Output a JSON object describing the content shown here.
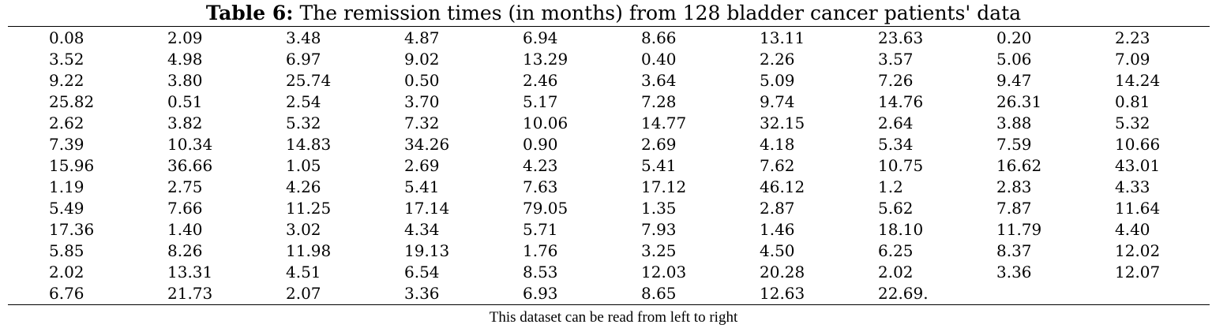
{
  "table": {
    "title_label": "Table 6:",
    "title": "The remission times (in months) from 128 bladder cancer patients' data",
    "rows": [
      [
        "0.08",
        "2.09",
        "3.48",
        "4.87",
        "6.94",
        "8.66",
        "13.11",
        "23.63",
        "0.20",
        "2.23"
      ],
      [
        "3.52",
        "4.98",
        "6.97",
        "9.02",
        "13.29",
        "0.40",
        "2.26",
        "3.57",
        "5.06",
        "7.09"
      ],
      [
        "9.22",
        "3.80",
        "25.74",
        "0.50",
        "2.46",
        "3.64",
        "5.09",
        "7.26",
        "9.47",
        "14.24"
      ],
      [
        "25.82",
        "0.51",
        "2.54",
        "3.70",
        "5.17",
        "7.28",
        "9.74",
        "14.76",
        "26.31",
        "0.81"
      ],
      [
        "2.62",
        "3.82",
        "5.32",
        "7.32",
        "10.06",
        "14.77",
        "32.15",
        "2.64",
        "3.88",
        "5.32"
      ],
      [
        "7.39",
        "10.34",
        "14.83",
        "34.26",
        "0.90",
        "2.69",
        "4.18",
        "5.34",
        "7.59",
        "10.66"
      ],
      [
        "15.96",
        "36.66",
        "1.05",
        "2.69",
        "4.23",
        "5.41",
        "7.62",
        "10.75",
        "16.62",
        "43.01"
      ],
      [
        "1.19",
        "2.75",
        "4.26",
        "5.41",
        "7.63",
        "17.12",
        "46.12",
        "1.2",
        "2.83",
        "4.33"
      ],
      [
        "5.49",
        "7.66",
        "11.25",
        "17.14",
        "79.05",
        "1.35",
        "2.87",
        "5.62",
        "7.87",
        "11.64"
      ],
      [
        "17.36",
        "1.40",
        "3.02",
        "4.34",
        "5.71",
        "7.93",
        "1.46",
        "18.10",
        "11.79",
        "4.40"
      ],
      [
        "5.85",
        "8.26",
        "11.98",
        "19.13",
        "1.76",
        "3.25",
        "4.50",
        "6.25",
        "8.37",
        "12.02"
      ],
      [
        "2.02",
        "13.31",
        "4.51",
        "6.54",
        "8.53",
        "12.03",
        "20.28",
        "2.02",
        "3.36",
        "12.07"
      ],
      [
        "6.76",
        "21.73",
        "2.07",
        "3.36",
        "6.93",
        "8.65",
        "12.63",
        "22.69."
      ]
    ],
    "footnote": "This dataset can be read from left to right"
  }
}
